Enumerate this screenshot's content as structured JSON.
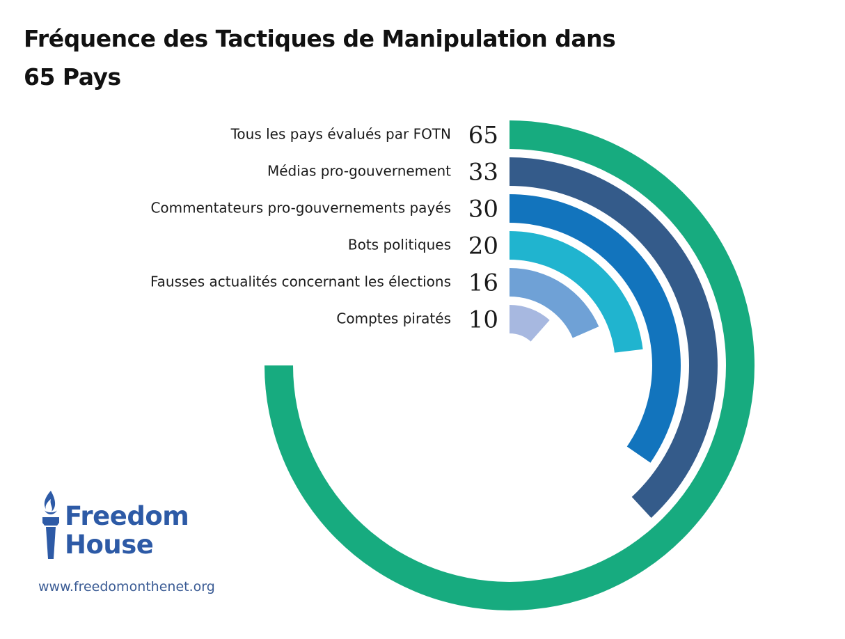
{
  "chart_data": {
    "type": "radial-bar",
    "title": "Fréquence des Tactiques de Manipulation dans 65 Pays",
    "max": 65,
    "categories": [
      "Tous les pays évalués par FOTN",
      "Médias pro-gouvernement",
      "Commentateurs pro-gouvernements payés",
      "Bots politiques",
      "Fausses actualités concernant les élections",
      "Comptes piratés"
    ],
    "values": [
      65,
      33,
      30,
      20,
      16,
      10
    ],
    "value_labels": [
      "65",
      "33",
      "30",
      "20",
      "16",
      "10"
    ],
    "colors": [
      "#17ab7f",
      "#345b8a",
      "#1274bd",
      "#20b4cf",
      "#6fa1d6",
      "#a7b8e0"
    ]
  },
  "logo": {
    "line1": "Freedom",
    "line2": "House",
    "icon": "torch-icon",
    "color": "#2d5aa6"
  },
  "website": "www.freedomonthenet.org"
}
